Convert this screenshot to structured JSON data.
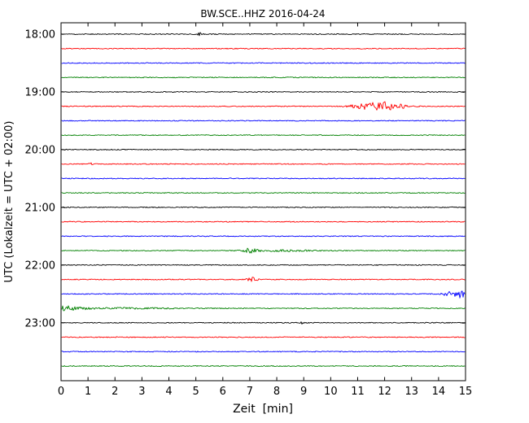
{
  "chart_data": {
    "type": "line",
    "subtype": "helicorder-dayplot",
    "title": "BW.SCE..HHZ 2016-04-24",
    "xlabel": "Zeit  [min]",
    "ylabel": "UTC (Lokalzeit = UTC + 02:00)",
    "xlim": [
      0,
      15
    ],
    "x_ticks": [
      0,
      1,
      2,
      3,
      4,
      5,
      6,
      7,
      8,
      9,
      10,
      11,
      12,
      13,
      14,
      15
    ],
    "y_hour_labels": [
      "18:00",
      "19:00",
      "20:00",
      "21:00",
      "22:00",
      "23:00"
    ],
    "minutes_per_line": 15,
    "num_lines": 24,
    "grid": false,
    "legend": "none",
    "color_cycle": [
      "#000000",
      "#ff0000",
      "#0000ff",
      "#008000"
    ],
    "noise_amp": 0.55,
    "traces": [
      {
        "start": "18:00",
        "color": "#000000",
        "events": [
          {
            "t": 5.15,
            "sigma": 0.06,
            "amp": 2.2
          }
        ]
      },
      {
        "start": "18:15",
        "color": "#ff0000",
        "events": []
      },
      {
        "start": "18:30",
        "color": "#0000ff",
        "events": []
      },
      {
        "start": "18:45",
        "color": "#008000",
        "events": []
      },
      {
        "start": "19:00",
        "color": "#000000",
        "events": []
      },
      {
        "start": "19:15",
        "color": "#ff0000",
        "events": [
          {
            "t": 11.0,
            "sigma": 0.25,
            "amp": 1.8
          },
          {
            "t": 11.85,
            "sigma": 0.45,
            "amp": 5.5
          },
          {
            "t": 12.6,
            "sigma": 0.3,
            "amp": 1.5
          }
        ]
      },
      {
        "start": "19:30",
        "color": "#0000ff",
        "events": []
      },
      {
        "start": "19:45",
        "color": "#008000",
        "events": []
      },
      {
        "start": "20:00",
        "color": "#000000",
        "events": []
      },
      {
        "start": "20:15",
        "color": "#ff0000",
        "events": [
          {
            "t": 1.1,
            "sigma": 0.05,
            "amp": 1.8
          }
        ]
      },
      {
        "start": "20:30",
        "color": "#0000ff",
        "events": []
      },
      {
        "start": "20:45",
        "color": "#008000",
        "events": []
      },
      {
        "start": "21:00",
        "color": "#000000",
        "events": []
      },
      {
        "start": "21:15",
        "color": "#ff0000",
        "events": []
      },
      {
        "start": "21:30",
        "color": "#0000ff",
        "events": []
      },
      {
        "start": "21:45",
        "color": "#008000",
        "events": [
          {
            "t": 7.0,
            "sigma": 0.18,
            "amp": 3.2
          },
          {
            "t": 8.2,
            "sigma": 0.8,
            "amp": 0.9
          }
        ]
      },
      {
        "start": "22:00",
        "color": "#000000",
        "events": []
      },
      {
        "start": "22:15",
        "color": "#ff0000",
        "events": [
          {
            "t": 7.1,
            "sigma": 0.12,
            "amp": 2.8
          }
        ]
      },
      {
        "start": "22:30",
        "color": "#0000ff",
        "events": [
          {
            "t": 14.3,
            "sigma": 0.15,
            "amp": 1.5
          },
          {
            "t": 14.75,
            "sigma": 0.22,
            "amp": 5.0
          }
        ]
      },
      {
        "start": "22:45",
        "color": "#008000",
        "events": [
          {
            "t": 0.2,
            "sigma": 0.5,
            "amp": 2.6
          },
          {
            "t": 2.5,
            "sigma": 1.2,
            "amp": 0.7
          }
        ]
      },
      {
        "start": "23:00",
        "color": "#000000",
        "events": [
          {
            "t": 8.95,
            "sigma": 0.04,
            "amp": 1.3
          }
        ]
      },
      {
        "start": "23:15",
        "color": "#ff0000",
        "events": []
      },
      {
        "start": "23:30",
        "color": "#0000ff",
        "events": []
      },
      {
        "start": "23:45",
        "color": "#008000",
        "events": []
      }
    ]
  }
}
